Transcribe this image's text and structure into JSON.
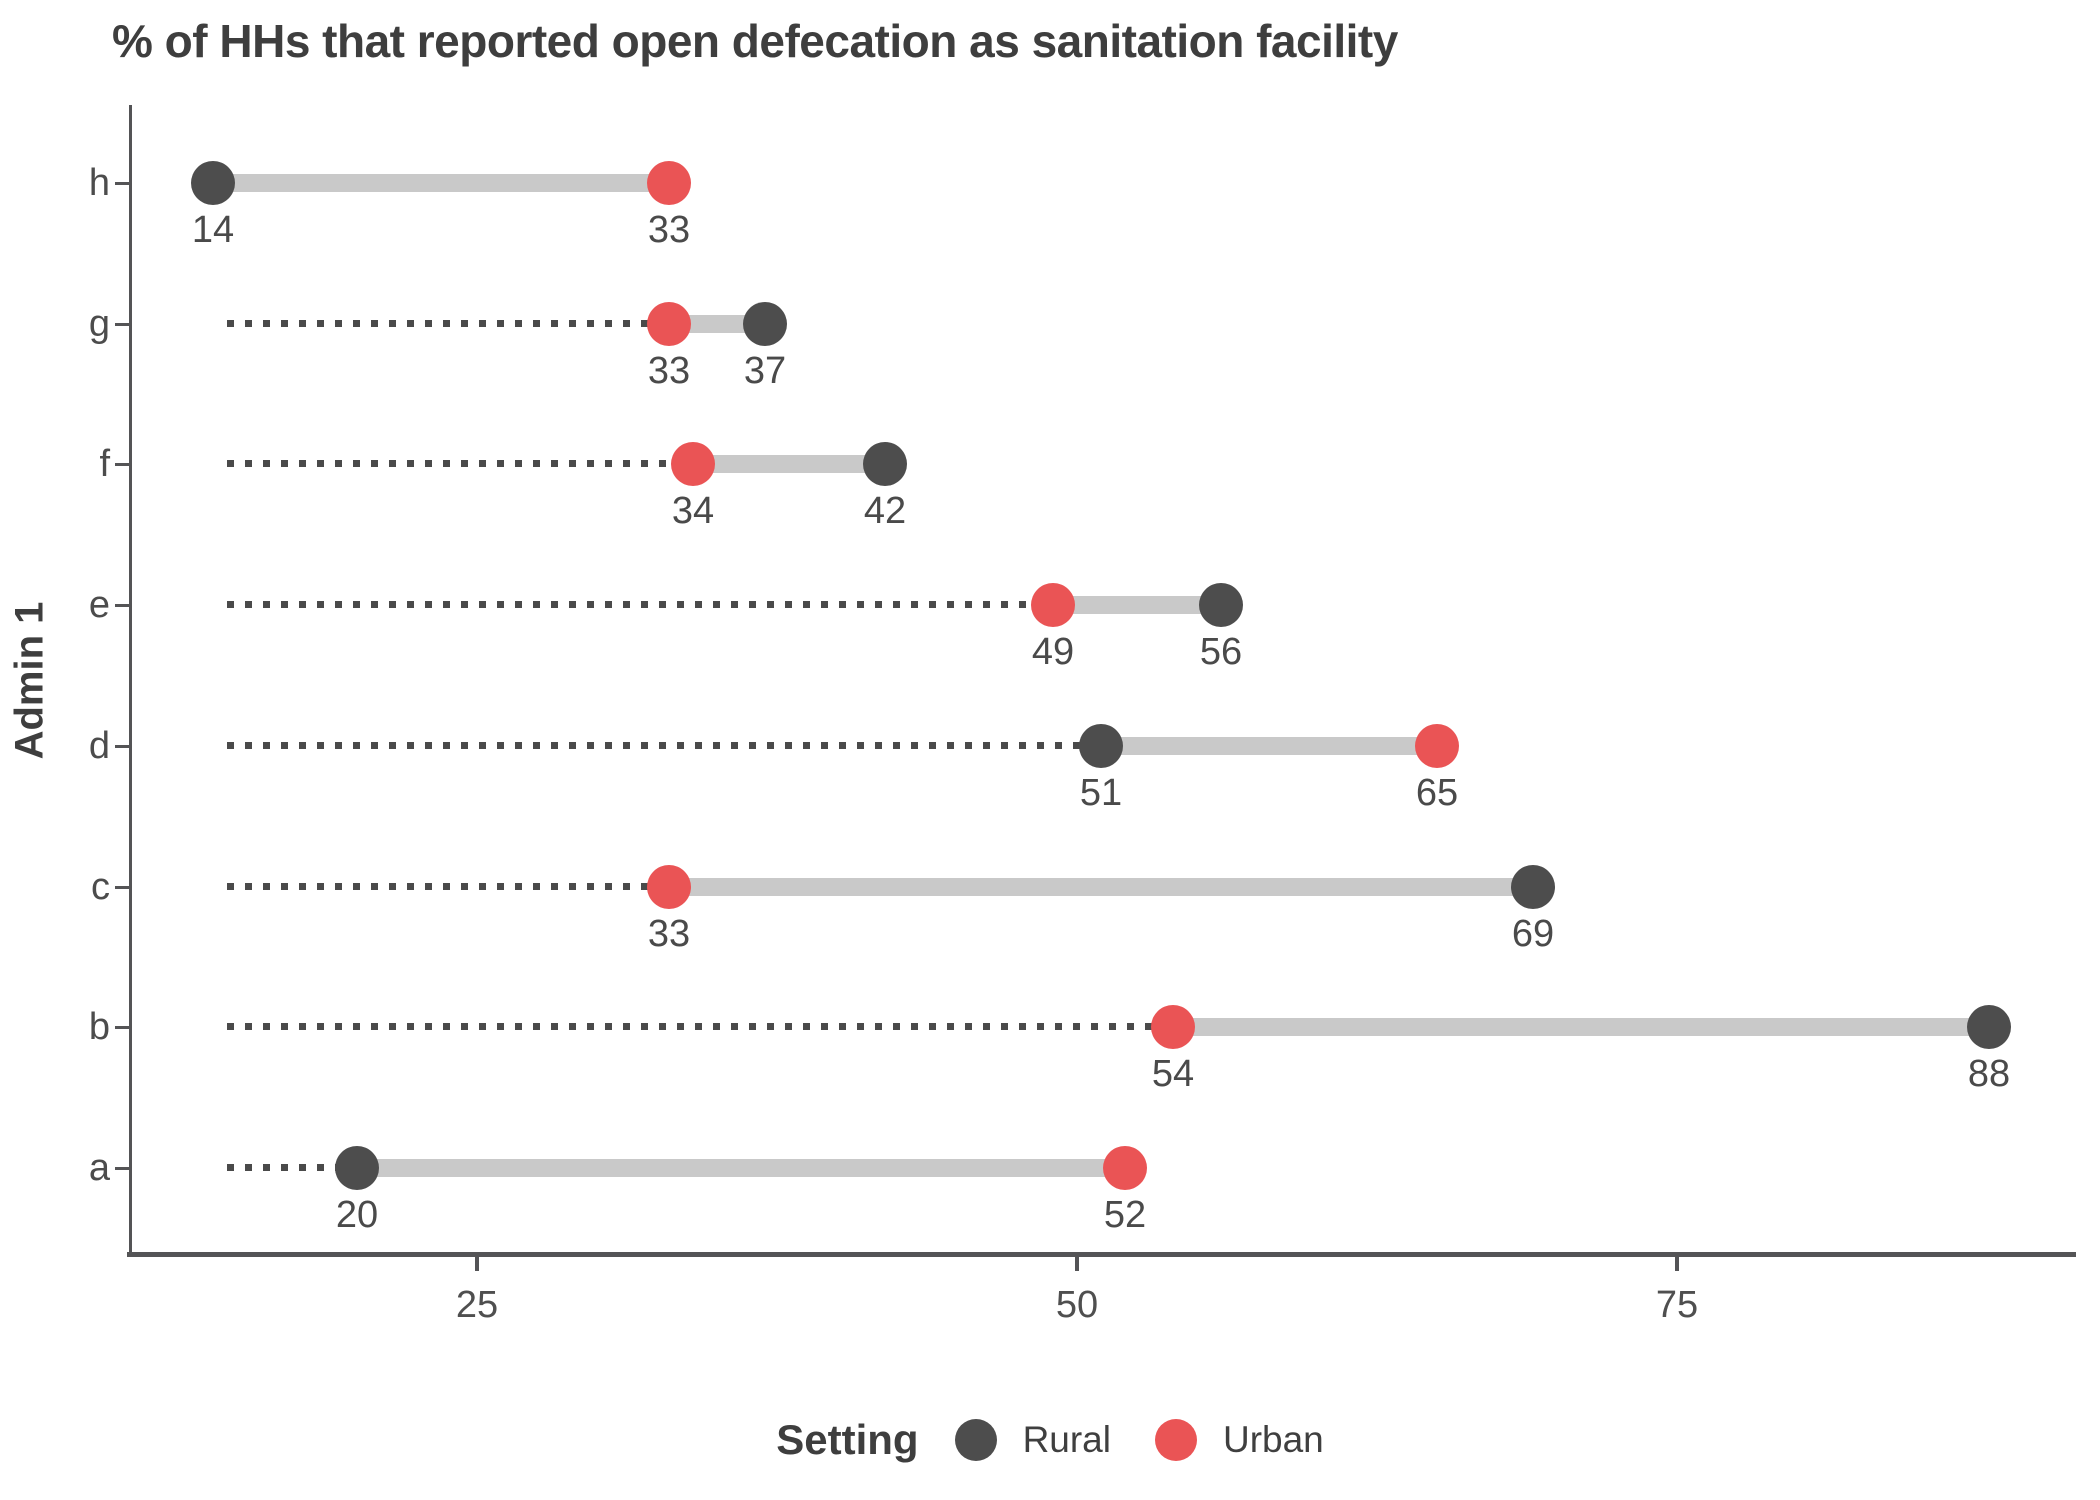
{
  "title": "% of HHs that reported open defecation as sanitation facility",
  "axes": {
    "y_title": "Admin 1",
    "x_tick_labels": [
      "25",
      "50",
      "75"
    ]
  },
  "legend": {
    "title": "Setting",
    "items": [
      {
        "label": "Rural",
        "color": "#4d4d4d"
      },
      {
        "label": "Urban",
        "color": "#ea5455"
      }
    ]
  },
  "colors": {
    "rural": "#4d4d4d",
    "urban": "#ea5455",
    "connector": "#c9c9c9",
    "leader_dots": "#4a4a4a",
    "axis": "#545456",
    "title_text": "#3e3e3e",
    "tick_text": "#4f4f4f"
  },
  "chart_data": {
    "type": "dumbbell",
    "title": "% of HHs that reported open defecation as sanitation facility",
    "xlabel": "",
    "ylabel": "Admin 1",
    "categories": [
      "h",
      "g",
      "f",
      "e",
      "d",
      "c",
      "b",
      "a"
    ],
    "series": [
      {
        "name": "Rural",
        "color": "#4d4d4d",
        "values": [
          14,
          37,
          42,
          56,
          51,
          69,
          88,
          20
        ]
      },
      {
        "name": "Urban",
        "color": "#ea5455",
        "values": [
          33,
          33,
          34,
          49,
          65,
          33,
          54,
          52
        ]
      }
    ],
    "point_labels_shown": true,
    "xticks": [
      25,
      50,
      75
    ],
    "xlim": [
      10.6,
      91.6
    ],
    "grid": false,
    "leader_lines": "dotted",
    "legend_position": "bottom",
    "legend_title": "Setting"
  }
}
